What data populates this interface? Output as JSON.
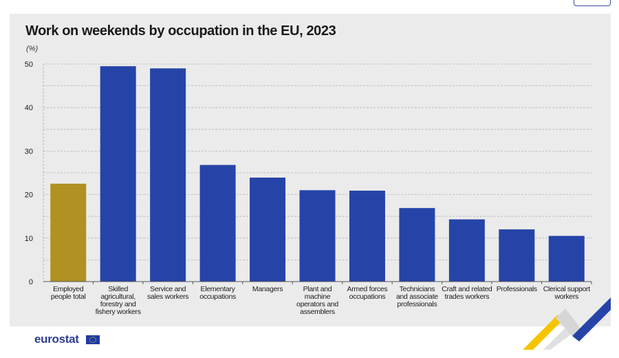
{
  "chart_data": {
    "type": "bar",
    "title": "Work on weekends by occupation in the EU, 2023",
    "unit_label": "(%)",
    "ylim": [
      0,
      50
    ],
    "yticks": [
      "0",
      "10",
      "20",
      "30",
      "40",
      "50"
    ],
    "grid": true,
    "categories": [
      "Employed people total",
      "Skilled agricultural, forestry and fishery workers",
      "Service and sales workers",
      "Elementary occupations",
      "Managers",
      "Plant and machine operators and assemblers",
      "Armed forces occupations",
      "Technicians and associate professionals",
      "Craft and related trades workers",
      "Professionals",
      "Clerical support workers"
    ],
    "category_label_lines": [
      [
        "Employed",
        "people total"
      ],
      [
        "Skilled",
        "agricultural,",
        "forestry and",
        "fishery workers"
      ],
      [
        "Service and",
        "sales workers"
      ],
      [
        "Elementary",
        "occupations"
      ],
      [
        "Managers"
      ],
      [
        "Plant and",
        "machine",
        "operators and",
        "assemblers"
      ],
      [
        "Armed forces",
        "occupations"
      ],
      [
        "Technicians",
        "and associate",
        "professionals"
      ],
      [
        "Craft and related",
        "trades workers"
      ],
      [
        "Professionals"
      ],
      [
        "Clerical support",
        "workers"
      ]
    ],
    "values": [
      22.5,
      49.5,
      49.0,
      26.8,
      23.9,
      21.0,
      20.9,
      16.9,
      14.3,
      12.0,
      10.5
    ],
    "colors": {
      "total": "#b09122",
      "occupation": "#2644a8"
    }
  },
  "branding": {
    "logo_text": "eurostat"
  }
}
